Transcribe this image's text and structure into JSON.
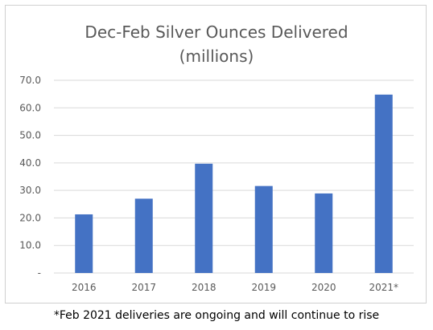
{
  "chart_data": {
    "type": "bar",
    "title_lines": [
      "Dec-Feb Silver Ounces Delivered",
      "(millions)"
    ],
    "categories": [
      "2016",
      "2017",
      "2018",
      "2019",
      "2020",
      "2021*"
    ],
    "values": [
      21.3,
      27.0,
      39.7,
      31.6,
      28.9,
      64.8
    ],
    "xlabel": "",
    "ylabel": "",
    "ylim": [
      0,
      70
    ],
    "yticks": [
      0,
      10,
      20,
      30,
      40,
      50,
      60,
      70
    ],
    "ytick_labels": [
      "-",
      "10.0",
      "20.0",
      "30.0",
      "40.0",
      "50.0",
      "60.0",
      "70.0"
    ],
    "grid": true,
    "legend": "none",
    "bar_color": "#4472c4",
    "grid_color": "#d9d9d9"
  },
  "footnote": "*Feb 2021 deliveries are ongoing and will continue to rise"
}
